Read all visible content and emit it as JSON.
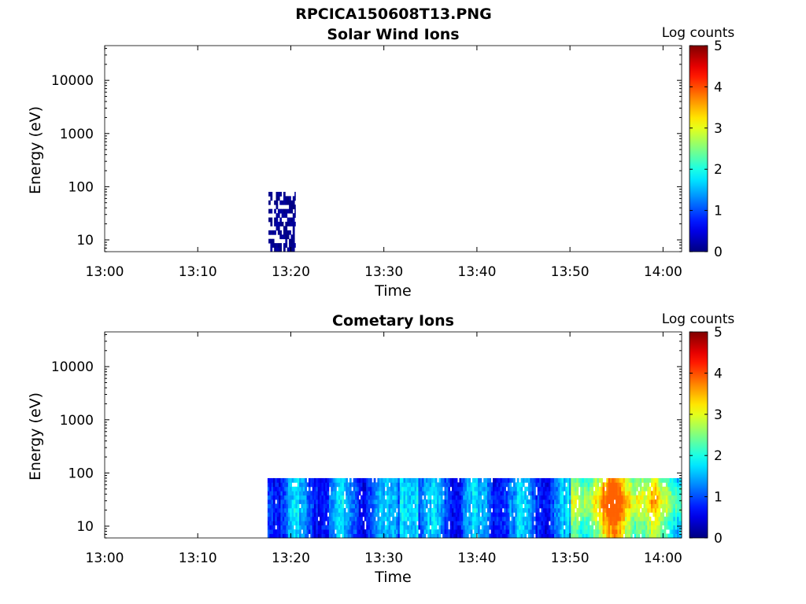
{
  "figure_title": "RPCICA150608T13.PNG",
  "chart_data": [
    {
      "type": "heatmap",
      "title": "Solar Wind Ions",
      "xlabel": "Time",
      "ylabel": "Energy (eV)",
      "xlim": [
        "13:00",
        "14:02"
      ],
      "xticks": [
        "13:00",
        "13:10",
        "13:20",
        "13:30",
        "13:40",
        "13:50",
        "14:00"
      ],
      "ylim": [
        6,
        45000
      ],
      "yscale": "log",
      "yticks": [
        "10",
        "100",
        "1000",
        "10000"
      ],
      "colorbar": {
        "label": "Log counts",
        "range": [
          0,
          5
        ],
        "ticks": [
          "0",
          "1",
          "2",
          "3",
          "4",
          "5"
        ],
        "colormap": "jet"
      },
      "data_region": {
        "t_start_min": 17.6,
        "t_end_min": 20.5,
        "e_min": 6,
        "e_max": 80,
        "typical_log_counts": 0.2,
        "sparse": true
      }
    },
    {
      "type": "heatmap",
      "title": "Cometary Ions",
      "xlabel": "Time",
      "ylabel": "Energy (eV)",
      "xlim": [
        "13:00",
        "14:02"
      ],
      "xticks": [
        "13:00",
        "13:10",
        "13:20",
        "13:30",
        "13:40",
        "13:50",
        "14:00"
      ],
      "ylim": [
        6,
        45000
      ],
      "yscale": "log",
      "yticks": [
        "10",
        "100",
        "1000",
        "10000"
      ],
      "colorbar": {
        "label": "Log counts",
        "range": [
          0,
          5
        ],
        "ticks": [
          "0",
          "1",
          "2",
          "3",
          "4",
          "5"
        ],
        "colormap": "jet"
      },
      "data_region": {
        "t_start_min": 17.5,
        "t_end_min": 62.0,
        "e_min": 6,
        "e_max": 80,
        "typical_log_counts": 1.2,
        "peak_log_counts": 3.9,
        "peak_time_min": 55.0,
        "sparse": false
      }
    }
  ]
}
